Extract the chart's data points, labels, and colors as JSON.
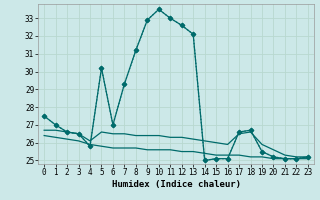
{
  "xlabel": "Humidex (Indice chaleur)",
  "bg_color": "#cce8e8",
  "grid_color": "#b8d8d0",
  "line_color": "#006b6b",
  "xlim": [
    -0.5,
    23.5
  ],
  "ylim": [
    24.8,
    33.8
  ],
  "yticks": [
    25,
    26,
    27,
    28,
    29,
    30,
    31,
    32,
    33
  ],
  "xticks": [
    0,
    1,
    2,
    3,
    4,
    5,
    6,
    7,
    8,
    9,
    10,
    11,
    12,
    13,
    14,
    15,
    16,
    17,
    18,
    19,
    20,
    21,
    22,
    23
  ],
  "series": [
    {
      "x": [
        0,
        1,
        2,
        3,
        4,
        5,
        6,
        7,
        8,
        9,
        10,
        11,
        12,
        13,
        14,
        15,
        16,
        17,
        18,
        19,
        20,
        21,
        22,
        23
      ],
      "y": [
        27.5,
        27.0,
        26.6,
        26.5,
        25.8,
        30.2,
        27.0,
        29.3,
        31.2,
        32.9,
        33.5,
        33.0,
        32.6,
        32.1,
        25.0,
        25.1,
        25.1,
        26.6,
        26.7,
        25.5,
        25.2,
        25.1,
        25.1,
        25.2
      ],
      "style": "dotted",
      "marker": "D",
      "markersize": 2.5
    },
    {
      "x": [
        0,
        1,
        2,
        3,
        4,
        5,
        6,
        7,
        8,
        9,
        10,
        11,
        12,
        13,
        14,
        15,
        16,
        17,
        18,
        19,
        20,
        21,
        22,
        23
      ],
      "y": [
        27.5,
        27.0,
        26.6,
        26.5,
        25.8,
        30.2,
        27.0,
        29.3,
        31.2,
        32.9,
        33.5,
        33.0,
        32.6,
        32.1,
        25.0,
        25.1,
        25.1,
        26.6,
        26.7,
        25.5,
        25.2,
        25.1,
        25.1,
        25.2
      ],
      "style": "solid",
      "marker": "D",
      "markersize": 2.5
    },
    {
      "x": [
        0,
        1,
        2,
        3,
        4,
        5,
        6,
        7,
        8,
        9,
        10,
        11,
        12,
        13,
        14,
        15,
        16,
        17,
        18,
        19,
        20,
        21,
        22,
        23
      ],
      "y": [
        26.7,
        26.7,
        26.6,
        26.5,
        26.1,
        26.6,
        26.5,
        26.5,
        26.4,
        26.4,
        26.4,
        26.3,
        26.3,
        26.2,
        26.1,
        26.0,
        25.9,
        26.5,
        26.6,
        25.9,
        25.6,
        25.3,
        25.2,
        25.2
      ],
      "style": "solid",
      "marker": null,
      "markersize": 0
    },
    {
      "x": [
        0,
        1,
        2,
        3,
        4,
        5,
        6,
        7,
        8,
        9,
        10,
        11,
        12,
        13,
        14,
        15,
        16,
        17,
        18,
        19,
        20,
        21,
        22,
        23
      ],
      "y": [
        26.4,
        26.3,
        26.2,
        26.1,
        25.9,
        25.8,
        25.7,
        25.7,
        25.7,
        25.6,
        25.6,
        25.6,
        25.5,
        25.5,
        25.4,
        25.3,
        25.3,
        25.3,
        25.2,
        25.2,
        25.1,
        25.1,
        25.1,
        25.1
      ],
      "style": "solid",
      "marker": null,
      "markersize": 0
    }
  ]
}
